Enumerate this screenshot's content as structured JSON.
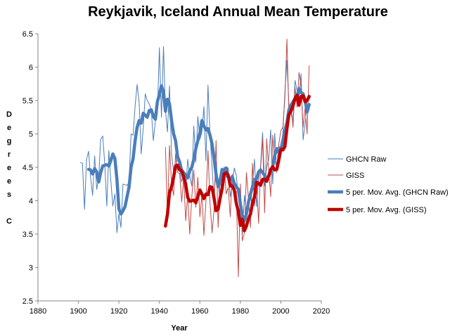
{
  "chart_data": {
    "type": "line",
    "title": "Reykjavik, Iceland Annual Mean Temperature",
    "xlabel": "Year",
    "ylabel_letters": [
      "D",
      "e",
      "g",
      "r",
      "e",
      "e",
      "s",
      "",
      "C"
    ],
    "xlim": [
      1880,
      2020
    ],
    "ylim": [
      2.5,
      6.5
    ],
    "xticks": [
      1880,
      1900,
      1920,
      1940,
      1960,
      1980,
      2000,
      2020
    ],
    "yticks": [
      "2.5",
      "3",
      "3.5",
      "4",
      "4.5",
      "5",
      "5.5",
      "6",
      "6.5"
    ],
    "grid": false,
    "legend_position": "right",
    "series": [
      {
        "name": "GHCN Raw",
        "color": "#4a7ebb",
        "style": "thin",
        "x": [
          1901,
          1902,
          1903,
          1904,
          1905,
          1906,
          1907,
          1908,
          1909,
          1910,
          1911,
          1912,
          1913,
          1914,
          1915,
          1916,
          1917,
          1918,
          1919,
          1920,
          1921,
          1922,
          1923,
          1924,
          1925,
          1926,
          1927,
          1928,
          1929,
          1930,
          1931,
          1932,
          1933,
          1934,
          1935,
          1936,
          1937,
          1938,
          1939,
          1940,
          1941,
          1942,
          1943,
          1944,
          1945,
          1946,
          1947,
          1948,
          1949,
          1950,
          1951,
          1952,
          1953,
          1954,
          1955,
          1956,
          1957,
          1958,
          1959,
          1960,
          1961,
          1962,
          1963,
          1964,
          1965,
          1966,
          1967,
          1968,
          1969,
          1970,
          1971,
          1972,
          1973,
          1974,
          1975,
          1976,
          1977,
          1978,
          1979,
          1980,
          1981,
          1982,
          1983,
          1984,
          1985,
          1986,
          1987,
          1988,
          1989,
          1990,
          1991,
          1992,
          1993,
          1994,
          1995,
          1996,
          1997,
          1998,
          1999,
          2000,
          2001,
          2002,
          2003,
          2004,
          2005,
          2006,
          2007,
          2008,
          2009,
          2010,
          2011,
          2012,
          2013,
          2014
        ],
        "values": [
          4.57,
          4.56,
          3.87,
          4.62,
          4.74,
          4.35,
          4.08,
          4.67,
          4.17,
          4.35,
          4.92,
          4.97,
          4.55,
          3.92,
          4.75,
          4.3,
          3.92,
          4.1,
          3.52,
          3.8,
          3.6,
          4.25,
          4.24,
          4.23,
          4.27,
          5.0,
          4.98,
          5.42,
          5.74,
          5.47,
          4.7,
          5.08,
          5.6,
          5.5,
          5.45,
          5.35,
          4.9,
          5.2,
          5.3,
          6.29,
          5.25,
          6.31,
          5.35,
          5.03,
          5.72,
          4.7,
          4.43,
          4.52,
          4.64,
          4.48,
          4.28,
          4.42,
          4.15,
          4.62,
          4.36,
          4.22,
          5.12,
          4.58,
          5.26,
          4.92,
          5.03,
          5.41,
          4.6,
          5.73,
          4.98,
          4.52,
          4.0,
          4.56,
          4.26,
          4.02,
          4.22,
          4.5,
          4.34,
          4.49,
          4.06,
          4.22,
          4.49,
          4.38,
          4.06,
          3.92,
          3.5,
          4.08,
          3.75,
          4.02,
          4.01,
          4.22,
          4.62,
          3.91,
          4.33,
          4.52,
          5.02,
          4.22,
          4.51,
          4.62,
          5.06,
          4.25,
          5.01,
          4.42,
          4.82,
          4.74,
          5.02,
          5.62,
          6.1,
          5.42,
          5.31,
          5.18,
          5.8,
          5.65,
          5.52,
          5.9,
          4.91,
          5.16,
          5.42,
          5.36
        ]
      },
      {
        "name": "GISS",
        "color": "#be4b48",
        "style": "thin",
        "x": [
          1943,
          1944,
          1945,
          1946,
          1947,
          1948,
          1949,
          1950,
          1951,
          1952,
          1953,
          1954,
          1955,
          1956,
          1957,
          1958,
          1959,
          1960,
          1961,
          1962,
          1963,
          1964,
          1965,
          1966,
          1967,
          1968,
          1969,
          1970,
          1971,
          1972,
          1973,
          1974,
          1975,
          1976,
          1977,
          1978,
          1979,
          1980,
          1981,
          1982,
          1983,
          1984,
          1985,
          1986,
          1987,
          1988,
          1989,
          1990,
          1991,
          1992,
          1993,
          1994,
          1995,
          1996,
          1997,
          1998,
          1999,
          2000,
          2001,
          2002,
          2003,
          2004,
          2005,
          2006,
          2007,
          2008,
          2009,
          2010,
          2011,
          2012,
          2013,
          2014
        ],
        "values": [
          4.8,
          3.75,
          4.83,
          4.25,
          4.08,
          4.7,
          4.42,
          4.41,
          3.98,
          4.35,
          3.7,
          4.1,
          3.5,
          4.06,
          4.46,
          3.9,
          4.35,
          3.76,
          4.1,
          3.48,
          3.99,
          4.75,
          3.97,
          3.52,
          3.85,
          4.9,
          3.6,
          4.3,
          4.15,
          4.5,
          4.1,
          4.2,
          3.76,
          4.4,
          4.1,
          4.14,
          2.86,
          4.25,
          3.4,
          3.52,
          4.42,
          4.03,
          3.6,
          4.56,
          3.92,
          4.24,
          3.66,
          4.48,
          4.92,
          3.82,
          4.93,
          4.44,
          4.06,
          4.98,
          4.61,
          4.5,
          4.85,
          5.05,
          5.1,
          5.54,
          6.42,
          5.3,
          5.45,
          5.1,
          5.7,
          5.4,
          5.92,
          5.72,
          5.1,
          5.4,
          5.0,
          6.02
        ]
      },
      {
        "name": "5 per. Mov. Avg. (GHCN Raw)",
        "color": "#4a7ebb",
        "style": "thick",
        "x": [
          1905,
          1906,
          1907,
          1908,
          1909,
          1910,
          1911,
          1912,
          1913,
          1914,
          1915,
          1916,
          1917,
          1918,
          1919,
          1920,
          1921,
          1922,
          1923,
          1924,
          1925,
          1926,
          1927,
          1928,
          1929,
          1930,
          1931,
          1932,
          1933,
          1934,
          1935,
          1936,
          1937,
          1938,
          1939,
          1940,
          1941,
          1942,
          1943,
          1944,
          1945,
          1946,
          1947,
          1948,
          1949,
          1950,
          1951,
          1952,
          1953,
          1954,
          1955,
          1956,
          1957,
          1958,
          1959,
          1960,
          1961,
          1962,
          1963,
          1964,
          1965,
          1966,
          1967,
          1968,
          1969,
          1970,
          1971,
          1972,
          1973,
          1974,
          1975,
          1976,
          1977,
          1978,
          1979,
          1980,
          1981,
          1982,
          1983,
          1984,
          1985,
          1986,
          1987,
          1988,
          1989,
          1990,
          1991,
          1992,
          1993,
          1994,
          1995,
          1996,
          1997,
          1998,
          1999,
          2000,
          2001,
          2002,
          2003,
          2004,
          2005,
          2006,
          2007,
          2008,
          2009,
          2010,
          2011,
          2012,
          2013,
          2014
        ],
        "values": [
          4.47,
          4.46,
          4.4,
          4.48,
          4.43,
          4.28,
          4.42,
          4.52,
          4.53,
          4.54,
          4.52,
          4.6,
          4.7,
          4.63,
          4.32,
          3.88,
          3.8,
          3.85,
          3.91,
          4.06,
          4.2,
          4.5,
          4.63,
          4.9,
          5.1,
          5.2,
          5.16,
          5.31,
          5.28,
          5.25,
          5.35,
          5.36,
          5.26,
          5.22,
          5.48,
          5.59,
          5.72,
          5.63,
          5.34,
          5.52,
          5.45,
          5.2,
          5.0,
          4.9,
          4.66,
          4.58,
          4.45,
          4.42,
          4.38,
          4.34,
          4.45,
          4.5,
          4.62,
          4.78,
          4.9,
          5.02,
          5.2,
          5.12,
          5.06,
          5.08,
          4.98,
          4.85,
          4.64,
          4.4,
          4.21,
          4.3,
          4.47,
          4.42,
          4.49,
          4.36,
          4.31,
          4.36,
          4.26,
          4.21,
          4.17,
          3.95,
          3.78,
          3.7,
          3.8,
          3.98,
          4.1,
          4.21,
          4.32,
          4.33,
          4.43,
          4.46,
          4.42,
          4.38,
          4.33,
          4.37,
          4.47,
          4.51,
          4.68,
          4.78,
          4.72,
          4.76,
          4.9,
          5.05,
          5.17,
          5.36,
          5.43,
          5.48,
          5.53,
          5.56,
          5.68,
          5.62,
          5.6,
          5.5,
          5.33,
          5.44
        ]
      },
      {
        "name": "5 per. Mov. Avg. (GISS)",
        "color": "#c00000",
        "style": "thick",
        "x": [
          1943,
          1944,
          1945,
          1946,
          1947,
          1948,
          1949,
          1950,
          1951,
          1952,
          1953,
          1954,
          1955,
          1956,
          1957,
          1958,
          1959,
          1960,
          1961,
          1962,
          1963,
          1964,
          1965,
          1966,
          1967,
          1968,
          1969,
          1970,
          1971,
          1972,
          1973,
          1974,
          1975,
          1976,
          1977,
          1978,
          1979,
          1980,
          1981,
          1982,
          1983,
          1984,
          1985,
          1986,
          1987,
          1988,
          1989,
          1990,
          1991,
          1992,
          1993,
          1994,
          1995,
          1996,
          1997,
          1998,
          1999,
          2000,
          2001,
          2002,
          2003,
          2004,
          2005,
          2006,
          2007,
          2008,
          2009,
          2010,
          2011,
          2012,
          2013,
          2014
        ],
        "values": [
          3.62,
          3.8,
          4.12,
          4.21,
          4.35,
          4.52,
          4.53,
          4.46,
          4.45,
          4.35,
          4.25,
          4.05,
          3.99,
          4.0,
          4.01,
          3.97,
          4.06,
          4.16,
          4.1,
          4.03,
          4.1,
          4.09,
          4.21,
          4.2,
          4.04,
          3.85,
          3.87,
          4.04,
          4.18,
          4.4,
          4.42,
          4.38,
          4.22,
          4.22,
          4.16,
          3.96,
          3.84,
          3.63,
          3.72,
          3.55,
          3.62,
          3.73,
          3.8,
          3.96,
          4.06,
          4.28,
          4.26,
          4.23,
          4.32,
          4.32,
          4.29,
          4.37,
          4.46,
          4.51,
          4.46,
          4.47,
          4.61,
          4.77,
          4.76,
          4.81,
          5.08,
          5.29,
          5.34,
          5.42,
          5.53,
          5.58,
          5.43,
          5.56,
          5.57,
          5.48,
          5.5,
          5.56
        ]
      }
    ]
  }
}
